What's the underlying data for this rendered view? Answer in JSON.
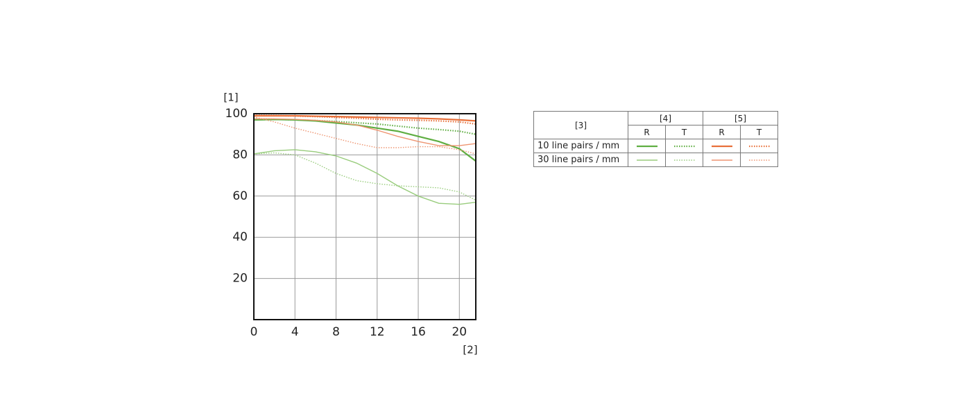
{
  "chart_data": {
    "type": "line",
    "y_label": "[1]",
    "x_label": "[2]",
    "x": [
      0,
      2,
      4,
      6,
      8,
      10,
      12,
      14,
      16,
      18,
      20,
      21.6
    ],
    "xlim": [
      0,
      21.6
    ],
    "xticks": [
      0,
      4,
      8,
      12,
      16,
      20
    ],
    "ylim": [
      0,
      100
    ],
    "yticks": [
      20,
      40,
      60,
      80,
      100
    ],
    "grid": true,
    "series": [
      {
        "color": "#5fae42",
        "style": "solid",
        "width": 2.2,
        "values": [
          97,
          97.2,
          97,
          96.5,
          95.5,
          94.5,
          93,
          91.5,
          89,
          86.5,
          83,
          77
        ]
      },
      {
        "color": "#5fae42",
        "style": "dotted",
        "width": 2.2,
        "values": [
          97.5,
          97.3,
          97,
          96.7,
          96.2,
          95.6,
          95,
          94,
          93,
          92.3,
          91.5,
          90
        ]
      },
      {
        "color": "#e8703a",
        "style": "solid",
        "width": 2.2,
        "values": [
          99,
          99,
          99,
          98.8,
          98.6,
          98.4,
          98.2,
          98,
          97.8,
          97.5,
          97,
          96.5
        ]
      },
      {
        "color": "#e8703a",
        "style": "dotted",
        "width": 2.2,
        "values": [
          99.2,
          99.1,
          98.9,
          98.6,
          98.2,
          97.8,
          97.3,
          97,
          96.8,
          96.5,
          96,
          95
        ]
      },
      {
        "color": "#98cc7c",
        "style": "solid",
        "width": 1.4,
        "values": [
          80.5,
          82,
          82.5,
          81.5,
          79.5,
          76,
          71,
          65,
          60,
          56.5,
          56,
          57
        ]
      },
      {
        "color": "#98cc7c",
        "style": "dotted",
        "width": 1.4,
        "values": [
          80.5,
          81,
          80,
          76,
          71,
          67.5,
          66,
          65,
          64.5,
          64,
          62,
          58
        ]
      },
      {
        "color": "#ee9470",
        "style": "solid",
        "width": 1.4,
        "values": [
          97.5,
          97.5,
          97.3,
          96.8,
          96,
          94.5,
          92,
          89,
          86.5,
          84.5,
          84.5,
          85.5
        ]
      },
      {
        "color": "#ee9470",
        "style": "dotted",
        "width": 1.4,
        "values": [
          98.5,
          96,
          93,
          90.5,
          88,
          85.5,
          83.5,
          83.5,
          84,
          84,
          82.5,
          80.5
        ]
      }
    ]
  },
  "legend": {
    "header": "[3]",
    "groups": [
      "[4]",
      "[5]"
    ],
    "columns": [
      "R",
      "T",
      "R",
      "T"
    ],
    "rows": [
      "10 line pairs / mm",
      "30 line pairs / mm"
    ]
  }
}
